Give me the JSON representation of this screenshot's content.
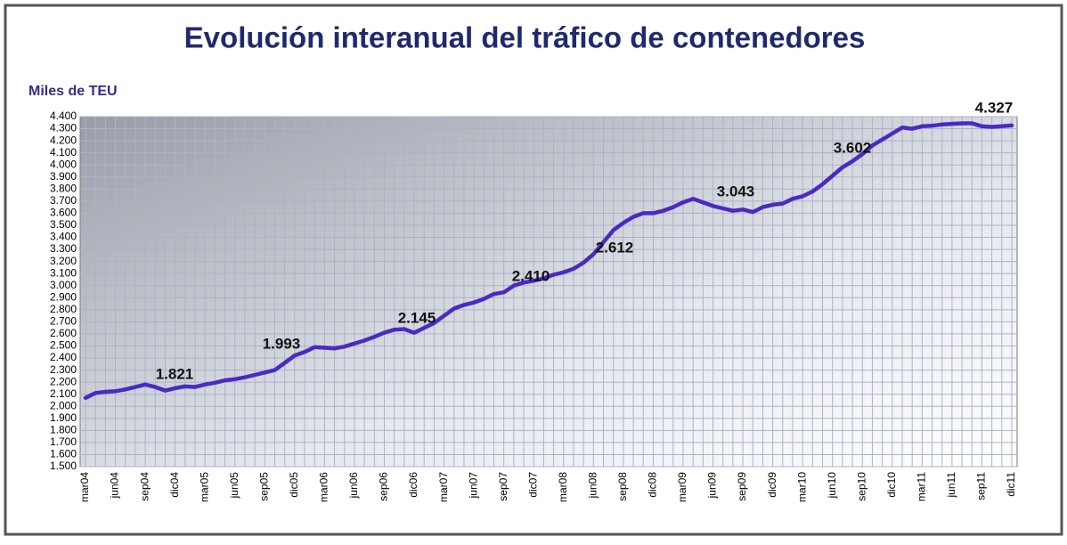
{
  "chart_data": {
    "type": "line",
    "title": "Evolución interanual del tráfico de contenedores",
    "y_label": "Miles de TEU",
    "color": "#4a2bc2",
    "grid": true,
    "categories": [
      "mar04",
      null,
      null,
      "jun04",
      null,
      null,
      "sep04",
      null,
      null,
      "dic04",
      null,
      null,
      "mar05",
      null,
      null,
      "jun05",
      null,
      null,
      "sep05",
      null,
      null,
      "dic05",
      null,
      null,
      "mar06",
      null,
      null,
      "jun06",
      null,
      null,
      "sep06",
      null,
      null,
      "dic06",
      null,
      null,
      "mar07",
      null,
      null,
      "jun07",
      null,
      null,
      "sep07",
      null,
      null,
      "dic07",
      null,
      null,
      "mar08",
      null,
      null,
      "jun08",
      null,
      null,
      "sep08",
      null,
      null,
      "dic08",
      null,
      null,
      "mar09",
      null,
      null,
      "jun09",
      null,
      null,
      "sep09",
      null,
      null,
      "dic09",
      null,
      null,
      "mar10",
      null,
      null,
      "jun10",
      null,
      null,
      "sep10",
      null,
      null,
      "dic10",
      null,
      null,
      "mar11",
      null,
      null,
      "jun11",
      null,
      null,
      "sep11",
      null,
      null,
      "dic11"
    ],
    "values": [
      2070,
      2110,
      2120,
      2125,
      2140,
      2160,
      2180,
      2160,
      2130,
      2150,
      2165,
      2160,
      2180,
      2195,
      2215,
      2225,
      2240,
      2260,
      2280,
      2300,
      2360,
      2420,
      2450,
      2490,
      2485,
      2480,
      2495,
      2520,
      2545,
      2575,
      2610,
      2635,
      2640,
      2610,
      2650,
      2690,
      2750,
      2810,
      2840,
      2860,
      2890,
      2930,
      2945,
      3000,
      3025,
      3040,
      3060,
      3090,
      3110,
      3140,
      3190,
      3260,
      3360,
      3460,
      3520,
      3570,
      3600,
      3600,
      3620,
      3650,
      3690,
      3720,
      3690,
      3660,
      3640,
      3620,
      3630,
      3610,
      3650,
      3670,
      3680,
      3720,
      3740,
      3780,
      3840,
      3910,
      3980,
      4030,
      4090,
      4160,
      4210,
      4260,
      4310,
      4300,
      4320,
      4325,
      4335,
      4340,
      4345,
      4345,
      4320,
      4315,
      4320,
      4327
    ],
    "annotations": [
      "1.821",
      "1.993",
      "2.145",
      "2.410",
      "2.612",
      "3.043",
      "3.602",
      "4.327"
    ],
    "ylim": [
      1500,
      4400
    ],
    "yticks": [
      {
        "value": 1500,
        "label": "1.500"
      },
      {
        "value": 1600,
        "label": "1.600"
      },
      {
        "value": 1700,
        "label": "1.700"
      },
      {
        "value": 1800,
        "label": "1.800"
      },
      {
        "value": 1900,
        "label": "1.900"
      },
      {
        "value": 2000,
        "label": "2.000"
      },
      {
        "value": 2100,
        "label": "2.100"
      },
      {
        "value": 2200,
        "label": "2.200"
      },
      {
        "value": 2300,
        "label": "2.300"
      },
      {
        "value": 2400,
        "label": "2.400"
      },
      {
        "value": 2500,
        "label": "2.500"
      },
      {
        "value": 2600,
        "label": "2.600"
      },
      {
        "value": 2700,
        "label": "2.700"
      },
      {
        "value": 2800,
        "label": "2.800"
      },
      {
        "value": 2900,
        "label": "2.900"
      },
      {
        "value": 3000,
        "label": "3.000"
      },
      {
        "value": 3100,
        "label": "3.100"
      },
      {
        "value": 3200,
        "label": "3.200"
      },
      {
        "value": 3300,
        "label": "3.300"
      },
      {
        "value": 3400,
        "label": "3.400"
      },
      {
        "value": 3500,
        "label": "3.500"
      },
      {
        "value": 3600,
        "label": "3.600"
      },
      {
        "value": 3700,
        "label": "3.700"
      },
      {
        "value": 3800,
        "label": "3.800"
      },
      {
        "value": 3900,
        "label": "3.900"
      },
      {
        "value": 4000,
        "label": "4.000"
      },
      {
        "value": 4100,
        "label": "4.100"
      },
      {
        "value": 4200,
        "label": "4.200"
      },
      {
        "value": 4300,
        "label": "4.300"
      },
      {
        "value": 4400,
        "label": "4.400"
      }
    ]
  }
}
